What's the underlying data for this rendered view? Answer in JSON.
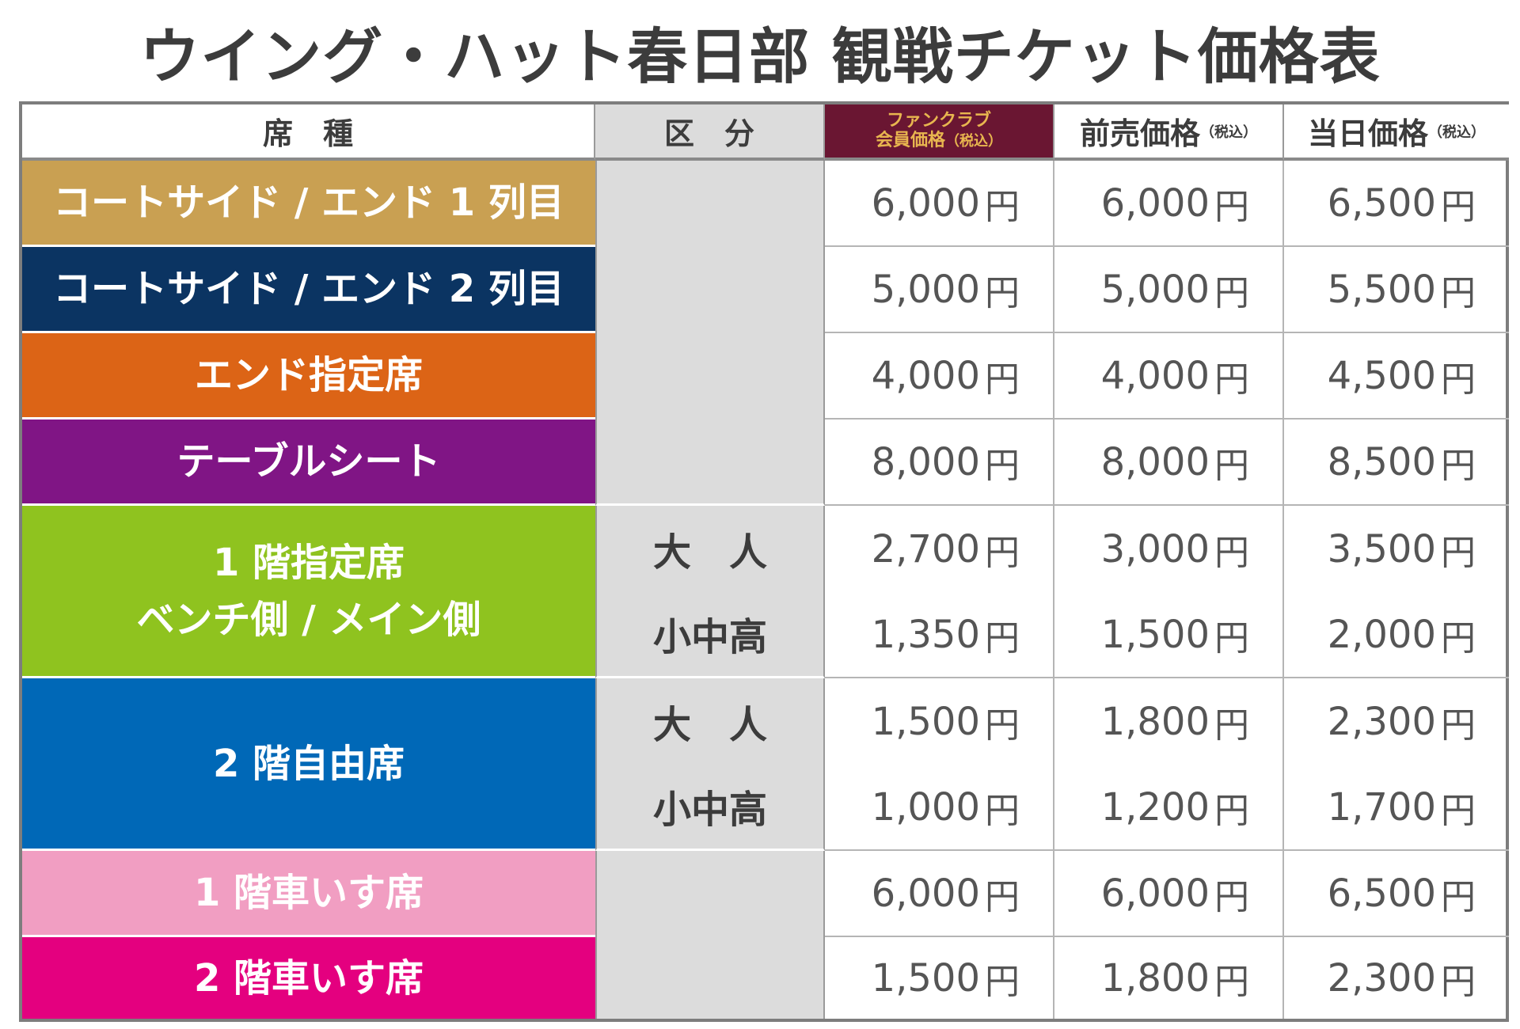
{
  "title": "ウイング・ハット春日部 観戦チケット価格表",
  "header": {
    "seat": "席　種",
    "category": "区　分",
    "fanclub_line1": "ファンクラブ",
    "fanclub_line2": "会員価格",
    "tax_note": "（税込）",
    "advance": "前売価格",
    "sameday": "当日価格"
  },
  "colors": {
    "row1": "#c9a052",
    "row2": "#0b3462",
    "row3": "#dc6416",
    "row4": "#801585",
    "row5": "#8fc31f",
    "row6": "#0068b7",
    "row7": "#f19ec2",
    "row8": "#e4007f",
    "fanclub_header_bg": "#6a1632",
    "fanclub_header_text": "#e8b64f"
  },
  "rows": [
    {
      "seat": "コートサイド / エンド 1 列目",
      "prices": [
        {
          "category": "",
          "fanclub": "6,000",
          "advance": "6,000",
          "sameday": "6,500"
        }
      ]
    },
    {
      "seat": "コートサイド / エンド 2 列目",
      "prices": [
        {
          "category": "",
          "fanclub": "5,000",
          "advance": "5,000",
          "sameday": "5,500"
        }
      ]
    },
    {
      "seat": "エンド指定席",
      "prices": [
        {
          "category": "",
          "fanclub": "4,000",
          "advance": "4,000",
          "sameday": "4,500"
        }
      ]
    },
    {
      "seat": "テーブルシート",
      "prices": [
        {
          "category": "",
          "fanclub": "8,000",
          "advance": "8,000",
          "sameday": "8,500"
        }
      ]
    },
    {
      "seat_line1": "1 階指定席",
      "seat_line2": "ベンチ側 / メイン側",
      "prices": [
        {
          "category": "大　人",
          "fanclub": "2,700",
          "advance": "3,000",
          "sameday": "3,500"
        },
        {
          "category": "小中高",
          "fanclub": "1,350",
          "advance": "1,500",
          "sameday": "2,000"
        }
      ]
    },
    {
      "seat": "2 階自由席",
      "prices": [
        {
          "category": "大　人",
          "fanclub": "1,500",
          "advance": "1,800",
          "sameday": "2,300"
        },
        {
          "category": "小中高",
          "fanclub": "1,000",
          "advance": "1,200",
          "sameday": "1,700"
        }
      ]
    },
    {
      "seat": "1 階車いす席",
      "prices": [
        {
          "category": "",
          "fanclub": "6,000",
          "advance": "6,000",
          "sameday": "6,500"
        }
      ]
    },
    {
      "seat": "2 階車いす席",
      "prices": [
        {
          "category": "",
          "fanclub": "1,500",
          "advance": "1,800",
          "sameday": "2,300"
        }
      ]
    }
  ],
  "currency": "円"
}
